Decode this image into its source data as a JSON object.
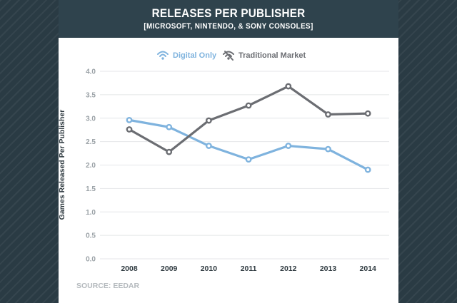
{
  "header": {
    "title": "RELEASES PER PUBLISHER",
    "subtitle": "[MICROSOFT, NINTENDO, & SONY CONSOLES]"
  },
  "source": "SOURCE: EEDAR",
  "colors": {
    "digital": "#7fb3de",
    "traditional": "#6b6d72",
    "header_bg": "#2f434d"
  },
  "legend": [
    {
      "label": "Digital Only",
      "icon": "wifi-icon"
    },
    {
      "label": "Traditional Market",
      "icon": "wifi-off-icon"
    }
  ],
  "chart_data": {
    "type": "line",
    "title": "RELEASES PER PUBLISHER",
    "subtitle": "[MICROSOFT, NINTENDO, & SONY CONSOLES]",
    "ylabel": "Games Released Per Publisher",
    "xlabel": "",
    "x": [
      "2008",
      "2009",
      "2010",
      "2011",
      "2012",
      "2013",
      "2014"
    ],
    "yticks": [
      "0.0",
      "0.5",
      "1.0",
      "1.5",
      "2.0",
      "2.5",
      "3.0",
      "3.5",
      "4.0"
    ],
    "ylim": [
      0,
      4
    ],
    "grid": true,
    "legend_position": "top",
    "series": [
      {
        "name": "Digital Only",
        "values": [
          2.96,
          2.81,
          2.41,
          2.12,
          2.41,
          2.34,
          1.9
        ]
      },
      {
        "name": "Traditional Market",
        "values": [
          2.76,
          2.28,
          2.95,
          3.27,
          3.68,
          3.08,
          3.1
        ]
      }
    ]
  }
}
